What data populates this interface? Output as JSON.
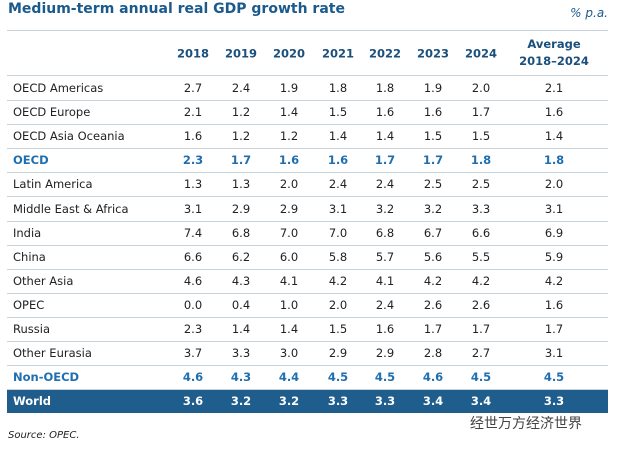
{
  "title": "Medium-term annual real GDP growth rate",
  "unit": "% p.a.",
  "table": {
    "header": [
      "2018",
      "2019",
      "2020",
      "2021",
      "2022",
      "2023",
      "2024"
    ],
    "average_header": [
      "Average",
      "2018–2024"
    ],
    "rows": [
      {
        "label": "OECD Americas",
        "cells": [
          "2.7",
          "2.4",
          "1.9",
          "1.8",
          "1.8",
          "1.9",
          "2.0",
          "2.1"
        ]
      },
      {
        "label": "OECD Europe",
        "cells": [
          "2.1",
          "1.2",
          "1.4",
          "1.5",
          "1.6",
          "1.6",
          "1.7",
          "1.6"
        ]
      },
      {
        "label": "OECD Asia Oceania",
        "cells": [
          "1.6",
          "1.2",
          "1.2",
          "1.4",
          "1.4",
          "1.5",
          "1.5",
          "1.4"
        ]
      },
      {
        "label": "OECD",
        "cells": [
          "2.3",
          "1.7",
          "1.6",
          "1.6",
          "1.7",
          "1.7",
          "1.8",
          "1.8"
        ],
        "bold": true
      },
      {
        "label": "Latin America",
        "cells": [
          "1.3",
          "1.3",
          "2.0",
          "2.4",
          "2.4",
          "2.5",
          "2.5",
          "2.0"
        ]
      },
      {
        "label": "Middle East & Africa",
        "cells": [
          "3.1",
          "2.9",
          "2.9",
          "3.1",
          "3.2",
          "3.2",
          "3.3",
          "3.1"
        ]
      },
      {
        "label": "India",
        "cells": [
          "7.4",
          "6.8",
          "7.0",
          "7.0",
          "6.8",
          "6.7",
          "6.6",
          "6.9"
        ]
      },
      {
        "label": "China",
        "cells": [
          "6.6",
          "6.2",
          "6.0",
          "5.8",
          "5.7",
          "5.6",
          "5.5",
          "5.9"
        ]
      },
      {
        "label": "Other Asia",
        "cells": [
          "4.6",
          "4.3",
          "4.1",
          "4.2",
          "4.1",
          "4.2",
          "4.2",
          "4.2"
        ]
      },
      {
        "label": "OPEC",
        "cells": [
          "0.0",
          "0.4",
          "1.0",
          "2.0",
          "2.4",
          "2.6",
          "2.6",
          "1.6"
        ]
      },
      {
        "label": "Russia",
        "cells": [
          "2.3",
          "1.4",
          "1.4",
          "1.5",
          "1.6",
          "1.7",
          "1.7",
          "1.7"
        ]
      },
      {
        "label": "Other Eurasia",
        "cells": [
          "3.7",
          "3.3",
          "3.0",
          "2.9",
          "2.9",
          "2.8",
          "2.7",
          "3.1"
        ]
      },
      {
        "label": "Non-OECD",
        "cells": [
          "4.6",
          "4.3",
          "4.4",
          "4.5",
          "4.5",
          "4.6",
          "4.5",
          "4.5"
        ],
        "bold": true
      },
      {
        "label": "World",
        "cells": [
          "3.6",
          "3.2",
          "3.2",
          "3.3",
          "3.3",
          "3.4",
          "3.4",
          "3.3"
        ],
        "filled": true
      }
    ]
  },
  "source": "Source: OPEC.",
  "watermark": "经世万方经济世界"
}
